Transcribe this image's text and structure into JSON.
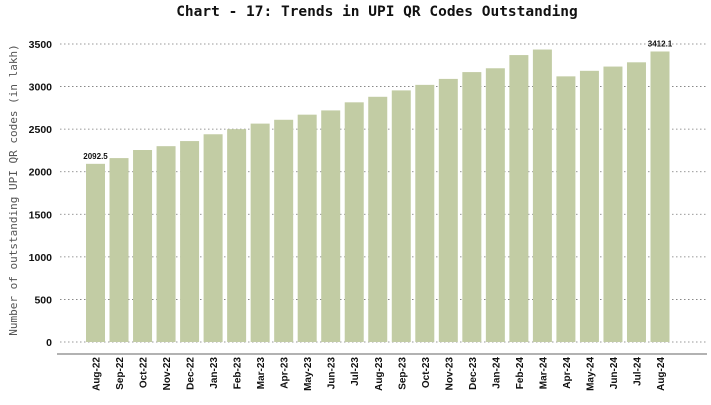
{
  "chart_data": {
    "type": "bar",
    "title": "Chart - 17: Trends in UPI QR Codes Outstanding",
    "xlabel": "",
    "ylabel": "Number of outstanding UPI QR codes (in lakh)",
    "ylim": [
      0,
      3500
    ],
    "yticks": [
      0,
      500,
      1000,
      1500,
      2000,
      2500,
      3000,
      3500
    ],
    "grid": true,
    "bar_color": "#c2cca4",
    "categories": [
      "Aug-22",
      "Sep-22",
      "Oct-22",
      "Nov-22",
      "Dec-22",
      "Jan-23",
      "Feb-23",
      "Mar-23",
      "Apr-23",
      "May-23",
      "Jun-23",
      "Jul-23",
      "Aug-23",
      "Sep-23",
      "Oct-23",
      "Nov-23",
      "Dec-23",
      "Jan-24",
      "Feb-24",
      "Mar-24",
      "Apr-24",
      "May-24",
      "Jun-24",
      "Jul-24",
      "Aug-24"
    ],
    "values": [
      2092.5,
      2160,
      2255,
      2300,
      2360,
      2440,
      2500,
      2565,
      2610,
      2670,
      2720,
      2815,
      2880,
      2955,
      3020,
      3090,
      3170,
      3215,
      3370,
      3435,
      3120,
      3185,
      3235,
      3285,
      3412.1
    ],
    "data_labels": [
      {
        "index": 0,
        "text": "2092.5"
      },
      {
        "index": 24,
        "text": "3412.1"
      }
    ]
  }
}
